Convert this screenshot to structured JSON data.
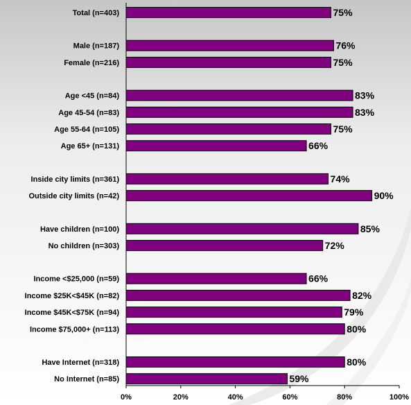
{
  "chart_data": {
    "type": "bar",
    "orientation": "horizontal",
    "title": "",
    "xlabel": "",
    "ylabel": "",
    "xlim": [
      0,
      100
    ],
    "value_unit": "%",
    "grid": false,
    "legend": "none",
    "bar_color": "#800080",
    "bar_edge_color": "#000000",
    "rows": [
      {
        "label": "Total (n=403)",
        "value": 75,
        "value_label": "75%",
        "group": 0
      },
      {
        "label": "Male (n=187)",
        "value": 76,
        "value_label": "76%",
        "group": 1
      },
      {
        "label": "Female (n=216)",
        "value": 75,
        "value_label": "75%",
        "group": 1
      },
      {
        "label": "Age <45 (n=84)",
        "value": 83,
        "value_label": "83%",
        "group": 2
      },
      {
        "label": "Age 45-54 (n=83)",
        "value": 83,
        "value_label": "83%",
        "group": 2
      },
      {
        "label": "Age 55-64 (n=105)",
        "value": 75,
        "value_label": "75%",
        "group": 2
      },
      {
        "label": "Age 65+ (n=131)",
        "value": 66,
        "value_label": "66%",
        "group": 2
      },
      {
        "label": "Inside city limits (n=361)",
        "value": 74,
        "value_label": "74%",
        "group": 3
      },
      {
        "label": "Outside city limits (n=42)",
        "value": 90,
        "value_label": "90%",
        "group": 3
      },
      {
        "label": "Have children (n=100)",
        "value": 85,
        "value_label": "85%",
        "group": 4
      },
      {
        "label": "No children (n=303)",
        "value": 72,
        "value_label": "72%",
        "group": 4
      },
      {
        "label": "Income <$25,000 (n=59)",
        "value": 66,
        "value_label": "66%",
        "group": 5
      },
      {
        "label": "Income $25K<$45K (n=82)",
        "value": 82,
        "value_label": "82%",
        "group": 5
      },
      {
        "label": "Income $45K<$75K (n=94)",
        "value": 79,
        "value_label": "79%",
        "group": 5
      },
      {
        "label": "Income $75,000+ (n=113)",
        "value": 80,
        "value_label": "80%",
        "group": 5
      },
      {
        "label": "Have Internet (n=318)",
        "value": 80,
        "value_label": "80%",
        "group": 6
      },
      {
        "label": "No Internet (n=85)",
        "value": 59,
        "value_label": "59%",
        "group": 6
      }
    ],
    "ticks": [
      {
        "value": 0,
        "label": "0%"
      },
      {
        "value": 20,
        "label": "20%"
      },
      {
        "value": 40,
        "label": "40%"
      },
      {
        "value": 60,
        "label": "60%"
      },
      {
        "value": 80,
        "label": "80%"
      },
      {
        "value": 100,
        "label": "100%"
      }
    ]
  }
}
